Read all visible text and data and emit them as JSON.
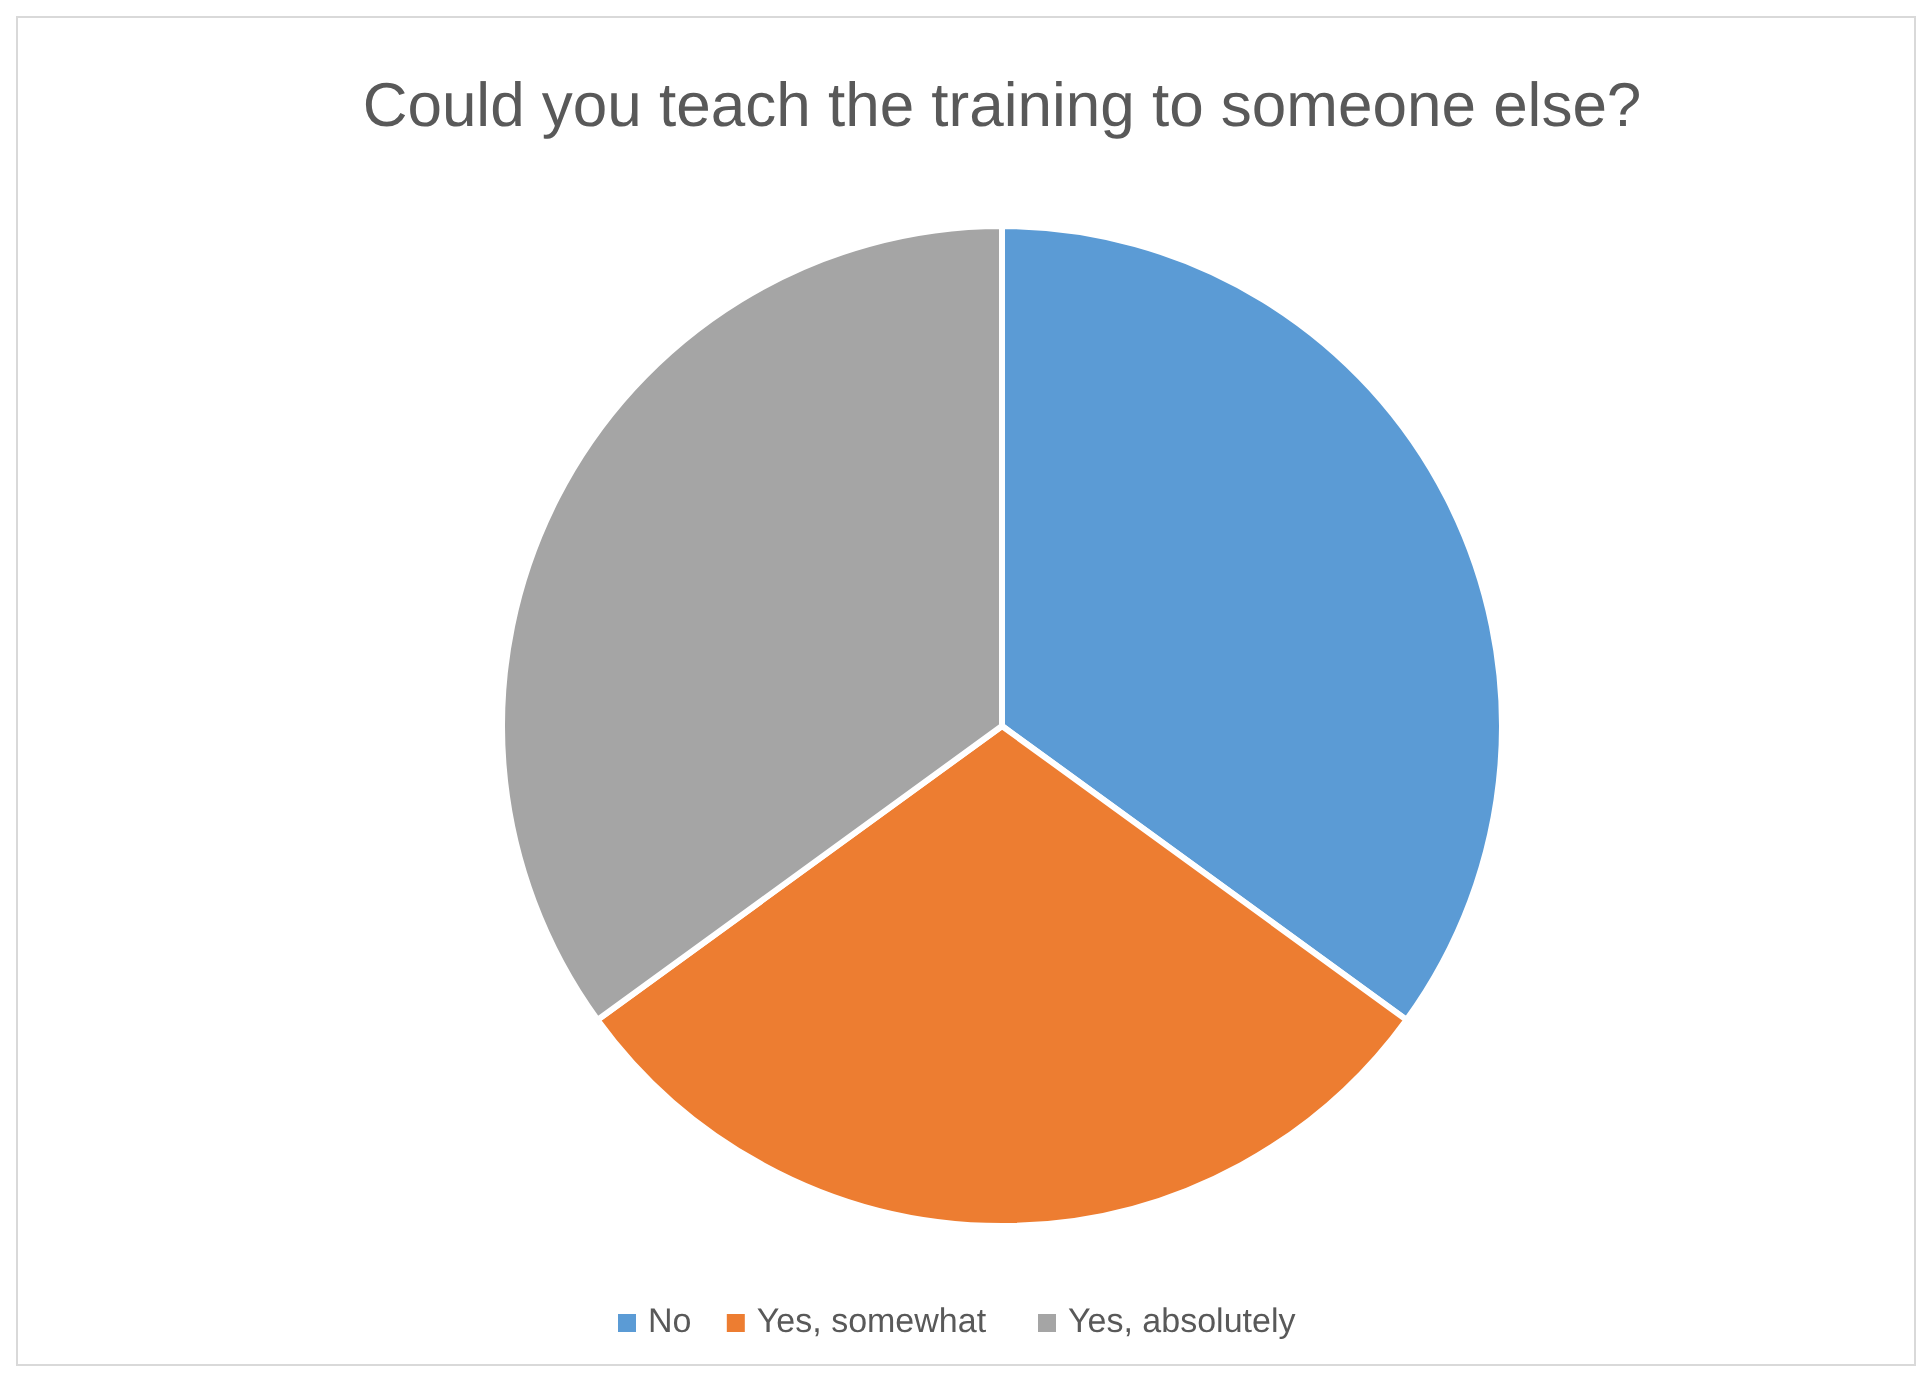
{
  "chart_data": {
    "type": "pie",
    "title": "Could you teach the training to someone else?",
    "categories": [
      "No",
      "Yes, somewhat",
      "Yes, absolutely"
    ],
    "values": [
      35,
      30,
      35
    ],
    "colors": [
      "#5b9bd5",
      "#ed7d31",
      "#a5a5a5"
    ],
    "legend": "bottom"
  }
}
